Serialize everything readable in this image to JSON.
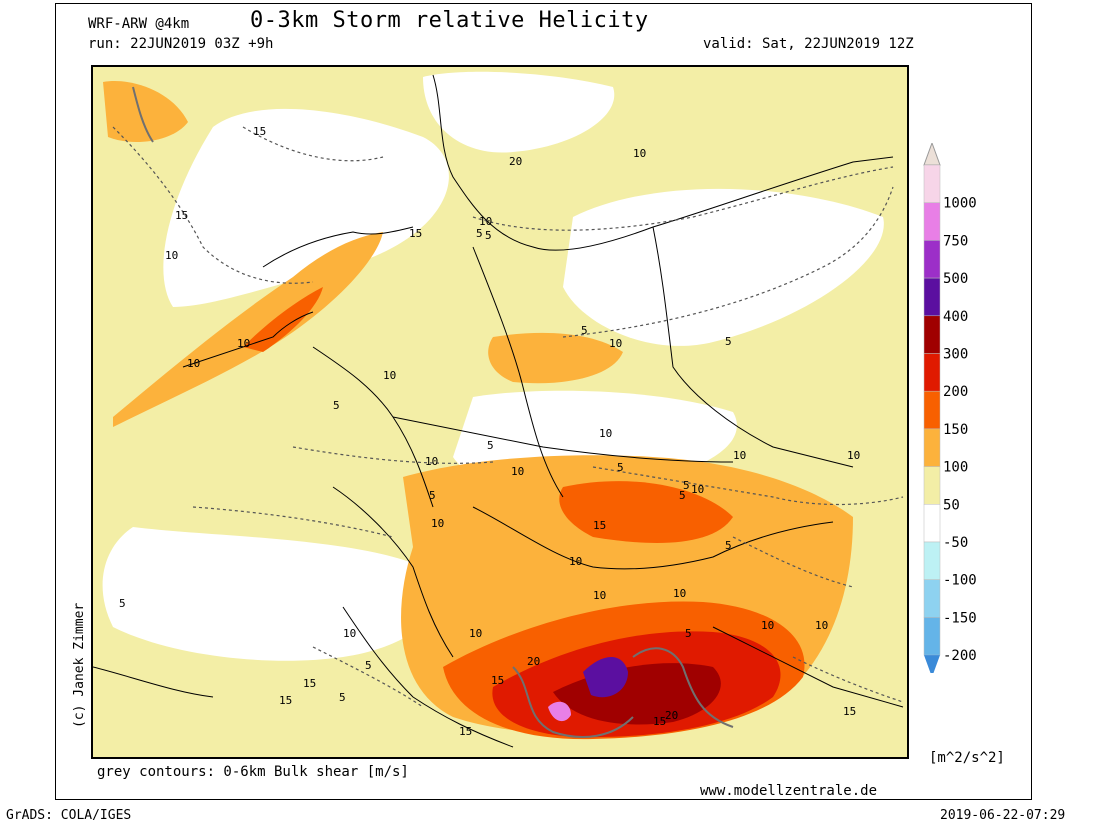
{
  "header": {
    "model": "WRF-ARW @4km",
    "title": "0-3km Storm relative Helicity",
    "run": "run: 22JUN2019 03Z +9h",
    "valid": "valid: Sat, 22JUN2019 12Z"
  },
  "footer": {
    "note": "grey contours: 0-6km Bulk shear [m/s]",
    "website": "www.modellzentrale.de",
    "software": "GrADS: COLA/IGES",
    "timestamp": "2019-06-22-07:29",
    "copyright": "(c) Janek Zimmer"
  },
  "legend": {
    "unit": "[m^2/s^2]",
    "levels": [
      {
        "label": "1000",
        "color": "#f7d5e8"
      },
      {
        "label": "750",
        "color": "#e87fe6"
      },
      {
        "label": "500",
        "color": "#9c2fc8"
      },
      {
        "label": "400",
        "color": "#5b0fa0"
      },
      {
        "label": "300",
        "color": "#a00000"
      },
      {
        "label": "200",
        "color": "#e01a00"
      },
      {
        "label": "150",
        "color": "#f86000"
      },
      {
        "label": "100",
        "color": "#fcb23c"
      },
      {
        "label": "50",
        "color": "#f3eea6"
      },
      {
        "label": "-50",
        "color": "#ffffff"
      },
      {
        "label": "-100",
        "color": "#bdf1f4"
      },
      {
        "label": "-150",
        "color": "#8ed2f0"
      },
      {
        "label": "-200",
        "color": "#64b4e8"
      }
    ],
    "top_color": "#ece0d8",
    "bottom_color": "#3a8ad8"
  },
  "map": {
    "contour_labels": [
      "15",
      "10",
      "15",
      "10",
      "20",
      "10",
      "5",
      "15",
      "10",
      "5",
      "10",
      "5",
      "5",
      "10",
      "5",
      "10",
      "5",
      "10",
      "10",
      "10",
      "5",
      "10",
      "10",
      "5",
      "5",
      "10",
      "10",
      "5",
      "10",
      "5",
      "10",
      "15",
      "5",
      "10",
      "10",
      "20",
      "15",
      "10",
      "15",
      "15",
      "5",
      "10",
      "15",
      "5",
      "5",
      "15",
      "20",
      "10",
      "15"
    ]
  }
}
